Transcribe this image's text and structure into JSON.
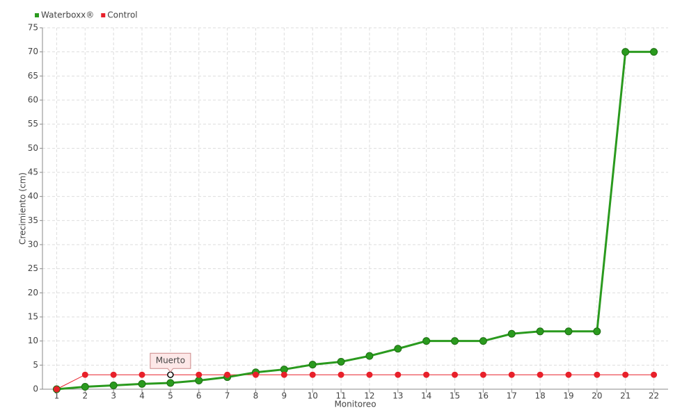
{
  "chart_data": {
    "type": "line",
    "x_label": "Monitoreo",
    "y_label": "Crecimiento (cm)",
    "categories": [
      "1",
      "2",
      "3",
      "4",
      "5",
      "6",
      "7",
      "8",
      "9",
      "10",
      "11",
      "12",
      "13",
      "14",
      "15",
      "16",
      "17",
      "18",
      "19",
      "20",
      "21",
      "22"
    ],
    "series": [
      {
        "name": "Waterboxx®",
        "color": "#2a9a1e",
        "values": [
          0,
          0.5,
          0.8,
          1.1,
          1.3,
          1.8,
          2.5,
          3.5,
          4.1,
          5.1,
          5.7,
          6.9,
          8.4,
          10,
          10,
          10,
          11.5,
          12,
          12,
          12,
          70,
          70
        ]
      },
      {
        "name": "Control",
        "color": "#e8202a",
        "values": [
          0,
          3,
          3,
          3,
          3,
          3,
          3,
          3,
          3,
          3,
          3,
          3,
          3,
          3,
          3,
          3,
          3,
          3,
          3,
          3,
          3,
          3
        ]
      }
    ],
    "annotation": {
      "text": "Muerto",
      "series": "Control",
      "category": "5"
    },
    "ylim": [
      0,
      75
    ],
    "yticks": [
      0,
      5,
      10,
      15,
      20,
      25,
      30,
      35,
      40,
      45,
      50,
      55,
      60,
      65,
      70,
      75
    ],
    "grid": true,
    "legend": "top-left"
  }
}
